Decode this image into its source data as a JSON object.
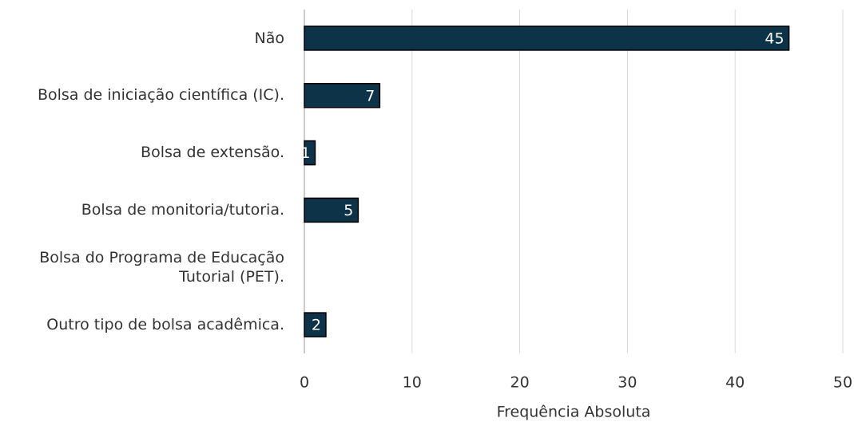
{
  "chart_data": {
    "type": "barh",
    "categories": [
      "Não",
      "Bolsa de iniciação científica (IC).",
      "Bolsa de extensão.",
      "Bolsa de monitoria/tutoria.",
      "Bolsa do Programa de Educação Tutorial (PET).",
      "Outro tipo de bolsa acadêmica."
    ],
    "values": [
      45,
      7,
      1,
      5,
      null,
      2
    ],
    "color": "#0d3349",
    "xlim": [
      0,
      50
    ],
    "xticks": [
      0,
      10,
      20,
      30,
      40,
      50
    ],
    "xlabel": "Frequência Absoluta",
    "grid": true
  }
}
